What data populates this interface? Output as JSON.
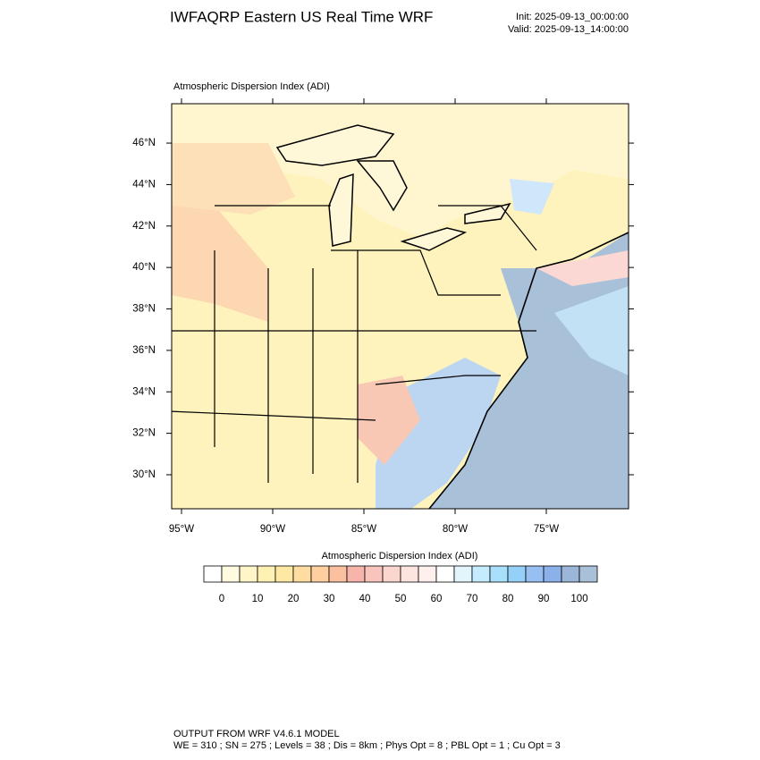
{
  "header": {
    "title": "IWFAQRP Eastern US Real Time WRF",
    "init": "Init: 2025-09-13_00:00:00",
    "valid": "Valid: 2025-09-13_14:00:00"
  },
  "map": {
    "subtitle": "Atmospheric Dispersion Index   (ADI)",
    "xlim": [
      -95.54,
      -70.49
    ],
    "ylim": [
      28.36,
      47.9
    ],
    "xticks": [
      {
        "value": -95,
        "label": "95°W"
      },
      {
        "value": -90,
        "label": "90°W"
      },
      {
        "value": -85,
        "label": "85°W"
      },
      {
        "value": -80,
        "label": "80°W"
      },
      {
        "value": -75,
        "label": "75°W"
      }
    ],
    "yticks": [
      {
        "value": 30,
        "label": "30°N"
      },
      {
        "value": 32,
        "label": "32°N"
      },
      {
        "value": 34,
        "label": "34°N"
      },
      {
        "value": 36,
        "label": "36°N"
      },
      {
        "value": 38,
        "label": "38°N"
      },
      {
        "value": 40,
        "label": "40°N"
      },
      {
        "value": 42,
        "label": "42°N"
      },
      {
        "value": 44,
        "label": "44°N"
      },
      {
        "value": 46,
        "label": "46°N"
      }
    ]
  },
  "colorbar": {
    "title": "Atmospheric Dispersion Index  (ADI)",
    "lim": [
      -5,
      105
    ],
    "ticks": [
      0,
      10,
      20,
      30,
      40,
      50,
      60,
      70,
      80,
      90,
      100
    ],
    "colors": [
      "#ffffff",
      "#fffbe0",
      "#fff5c8",
      "#fff0b4",
      "#ffe8a4",
      "#ffdca0",
      "#ffcfa0",
      "#fbc0a0",
      "#f6b4aa",
      "#f8c4bc",
      "#fbd6cf",
      "#fde4de",
      "#fff0ee",
      "#ffffff",
      "#e2f4fc",
      "#c4ecfc",
      "#a8e0fb",
      "#94d0f8",
      "#98bff2",
      "#8cb0ea",
      "#9cb6da",
      "#a8c0d8"
    ]
  },
  "footer": {
    "line1": "OUTPUT FROM WRF V4.6.1 MODEL",
    "line2": "WE = 310 ; SN = 275 ; Levels = 38 ; Dis = 8km ; Phys Opt = 8 ; PBL Opt = 1 ; Cu Opt = 3"
  }
}
